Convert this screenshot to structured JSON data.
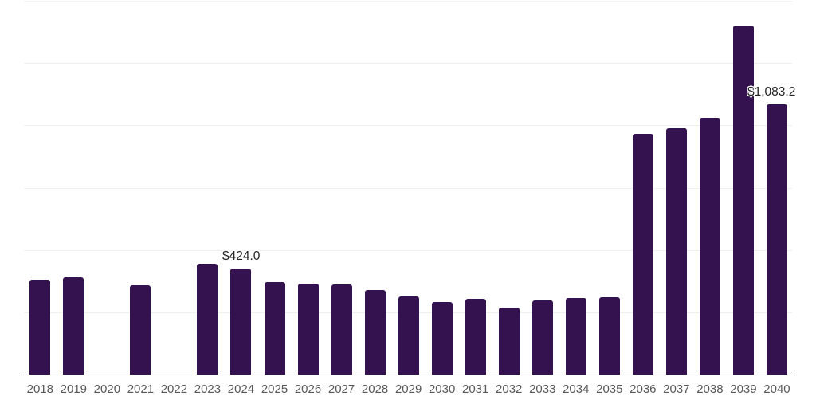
{
  "chart_data": {
    "type": "bar",
    "title": "",
    "xlabel": "",
    "ylabel": "",
    "categories": [
      "2018",
      "2019",
      "2020",
      "2021",
      "2022",
      "2023",
      "2024",
      "2025",
      "2026",
      "2027",
      "2028",
      "2029",
      "2030",
      "2031",
      "2032",
      "2033",
      "2034",
      "2035",
      "2036",
      "2037",
      "2038",
      "2039",
      "2040"
    ],
    "values": [
      380,
      390,
      null,
      358,
      null,
      446,
      424.0,
      371,
      366,
      361,
      340,
      315,
      292,
      305,
      269,
      297,
      307,
      310,
      966,
      989,
      1030,
      1402,
      1083.2
    ],
    "data_labels": [
      {
        "category": "2024",
        "text": "$424.0"
      },
      {
        "category": "2040",
        "text": "$1,083.2"
      }
    ],
    "ylim": [
      0,
      1500
    ],
    "gridline_interval": 250,
    "grid": "horizontal-only",
    "legend": "none",
    "y_tick_labels_visible": false,
    "bar_color": "#34124f"
  },
  "colors": {
    "bar": "#34124f",
    "axis_line": "#2b2b2b",
    "gridline": "#f0f0f0",
    "x_label_text": "#58585a",
    "data_label_text": "#232323",
    "background": "#ffffff"
  }
}
